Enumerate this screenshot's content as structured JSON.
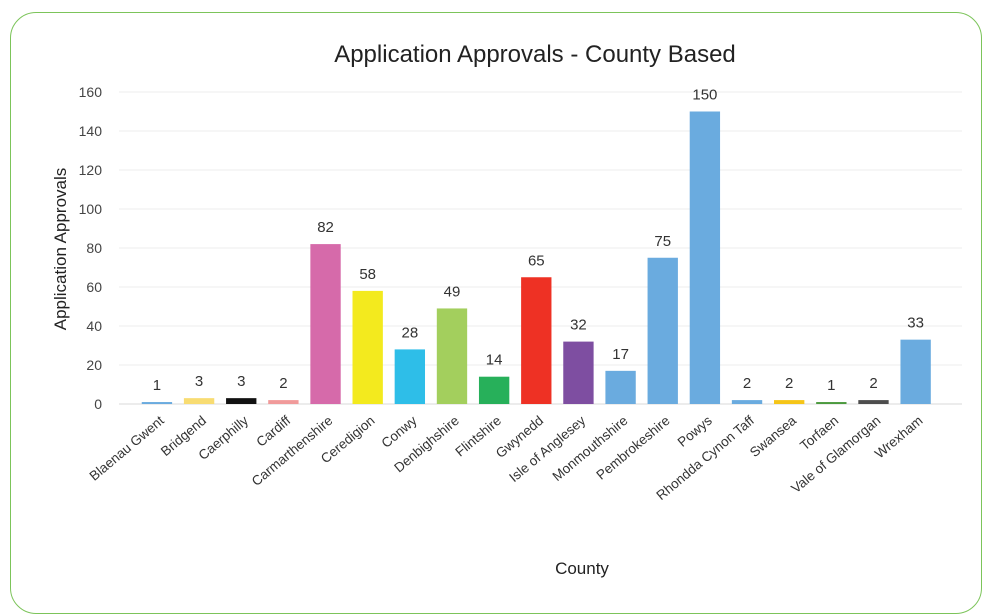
{
  "chart_data": {
    "type": "bar",
    "title": "Application Approvals - County Based",
    "xlabel": "County",
    "ylabel": "Application Approvals",
    "ylim": [
      0,
      160
    ],
    "yticks": [
      0,
      20,
      40,
      60,
      80,
      100,
      120,
      140,
      160
    ],
    "grid": true,
    "categories": [
      "Blaenau Gwent",
      "Bridgend",
      "Caerphilly",
      "Cardiff",
      "Carmarthenshire",
      "Ceredigion",
      "Conwy",
      "Denbighshire",
      "Flintshire",
      "Gwynedd",
      "Isle of Anglesey",
      "Monmouthshire",
      "Pembrokeshire",
      "Powys",
      "Rhondda Cynon Taff",
      "Swansea",
      "Torfaen",
      "Vale of Glamorgan",
      "Wrexham"
    ],
    "values": [
      1,
      3,
      3,
      2,
      82,
      58,
      28,
      49,
      14,
      65,
      32,
      17,
      75,
      150,
      2,
      2,
      1,
      2,
      33
    ],
    "colors": [
      "#6aabdf",
      "#f8dc72",
      "#111111",
      "#f09a9a",
      "#d66aaa",
      "#f3ea1e",
      "#2ebee8",
      "#a3cf5d",
      "#27b05a",
      "#ee3124",
      "#7e4ea1",
      "#6aabdf",
      "#6aabdf",
      "#6aabdf",
      "#6aabdf",
      "#f5c518",
      "#4b9a3e",
      "#4d4d4d",
      "#6aabdf"
    ]
  }
}
